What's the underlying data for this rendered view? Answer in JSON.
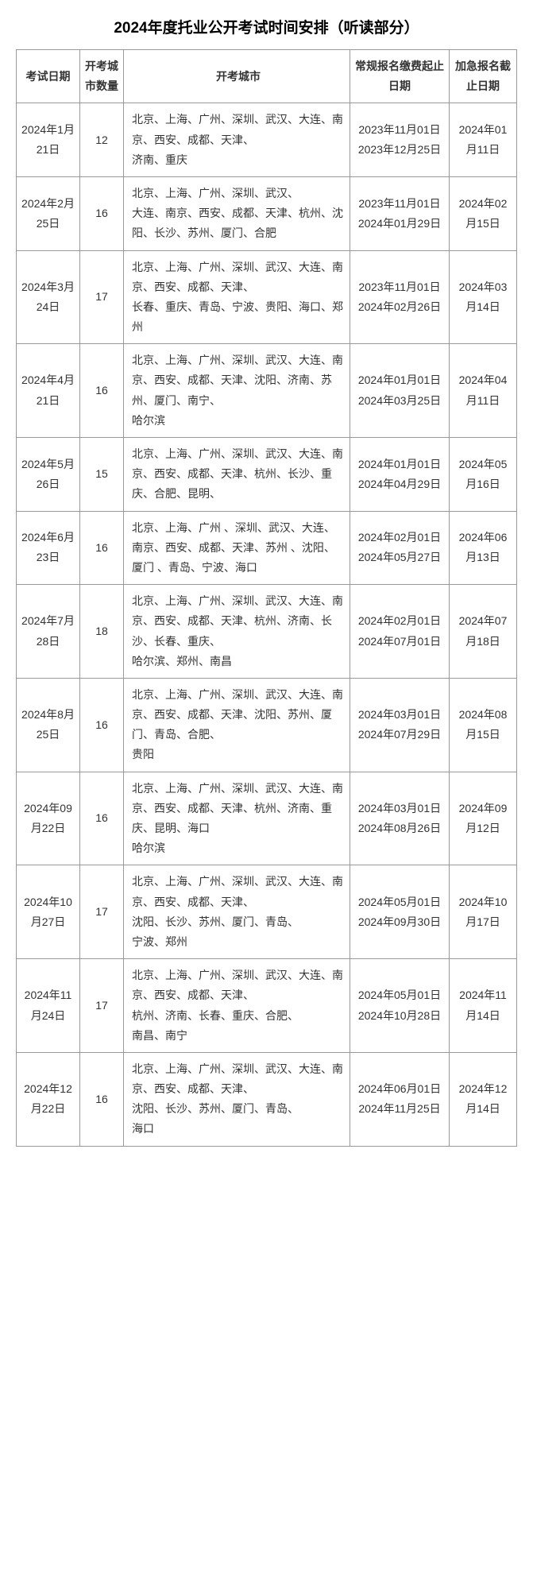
{
  "title": "2024年度托业公开考试时间安排（听读部分）",
  "headers": {
    "exam_date": "考试日期",
    "city_count": "开考城市数量",
    "cities": "开考城市",
    "regular_reg": "常规报名缴费起止日期",
    "urgent_reg": "加急报名截止日期"
  },
  "rows": [
    {
      "exam_date": "2024年1月21日",
      "city_count": "12",
      "cities": "北京、上海、广州、深圳、武汉、大连、南京、西安、成都、天津、\n济南、重庆",
      "regular_reg": "2023年11月01日2023年12月25日",
      "urgent_reg": "2024年01月11日"
    },
    {
      "exam_date": "2024年2月25日",
      "city_count": "16",
      "cities": "北京、上海、广州、深圳、武汉、\n大连、南京、西安、成都、天津、杭州、沈阳、长沙、苏州、厦门、合肥",
      "regular_reg": "2023年11月01日2024年01月29日",
      "urgent_reg": "2024年02月15日"
    },
    {
      "exam_date": "2024年3月24日",
      "city_count": "17",
      "cities": "北京、上海、广州、深圳、武汉、大连、南京、西安、成都、天津、\n长春、重庆、青岛、宁波、贵阳、海口、郑州",
      "regular_reg": "2023年11月01日2024年02月26日",
      "urgent_reg": "2024年03月14日"
    },
    {
      "exam_date": "2024年4月21日",
      "city_count": "16",
      "cities": "北京、上海、广州、深圳、武汉、大连、南京、西安、成都、天津、沈阳、济南、苏州、厦门、南宁、\n哈尔滨",
      "regular_reg": "2024年01月01日2024年03月25日",
      "urgent_reg": "2024年04月11日"
    },
    {
      "exam_date": "2024年5月26日",
      "city_count": "15",
      "cities": "北京、上海、广州、深圳、武汉、大连、南京、西安、成都、天津、杭州、长沙、重庆、合肥、昆明、",
      "regular_reg": "2024年01月01日2024年04月29日",
      "urgent_reg": "2024年05月16日"
    },
    {
      "exam_date": "2024年6月23日",
      "city_count": "16",
      "cities": "北京、上海、广州 、深圳、武汉、大连、南京、西安、成都、天津、苏州 、沈阳、厦门 、青岛、宁波、海口",
      "regular_reg": "2024年02月01日2024年05月27日",
      "urgent_reg": "2024年06月13日"
    },
    {
      "exam_date": "2024年7月28日",
      "city_count": "18",
      "cities": "北京、上海、广州、深圳、武汉、大连、南京、西安、成都、天津、杭州、济南、长沙、长春、重庆、\n哈尔滨、郑州、南昌",
      "regular_reg": "2024年02月01日2024年07月01日",
      "urgent_reg": "2024年07月18日"
    },
    {
      "exam_date": "2024年8月25日",
      "city_count": "16",
      "cities": "北京、上海、广州、深圳、武汉、大连、南京、西安、成都、天津、沈阳、苏州、厦门、青岛、合肥、\n贵阳",
      "regular_reg": "2024年03月01日2024年07月29日",
      "urgent_reg": "2024年08月15日"
    },
    {
      "exam_date": "2024年09月22日",
      "city_count": "16",
      "cities": "北京、上海、广州、深圳、武汉、大连、南京、西安、成都、天津、杭州、济南、重庆、昆明、海口\n哈尔滨",
      "regular_reg": "2024年03月01日2024年08月26日",
      "urgent_reg": "2024年09月12日"
    },
    {
      "exam_date": "2024年10月27日",
      "city_count": "17",
      "cities": "北京、上海、广州、深圳、武汉、大连、南京、西安、成都、天津、\n沈阳、长沙、苏州、厦门、青岛、\n宁波、郑州",
      "regular_reg": "2024年05月01日2024年09月30日",
      "urgent_reg": "2024年10月17日"
    },
    {
      "exam_date": "2024年11月24日",
      "city_count": "17",
      "cities": "北京、上海、广州、深圳、武汉、大连、南京、西安、成都、天津、\n杭州、济南、长春、重庆、合肥、\n南昌、南宁",
      "regular_reg": "2024年05月01日2024年10月28日",
      "urgent_reg": "2024年11月14日"
    },
    {
      "exam_date": "2024年12月22日",
      "city_count": "16",
      "cities": "北京、上海、广州、深圳、武汉、大连、南京、西安、成都、天津、\n沈阳、长沙、苏州、厦门、青岛、\n海口",
      "regular_reg": "2024年06月01日2024年11月25日",
      "urgent_reg": "2024年12月14日"
    }
  ]
}
